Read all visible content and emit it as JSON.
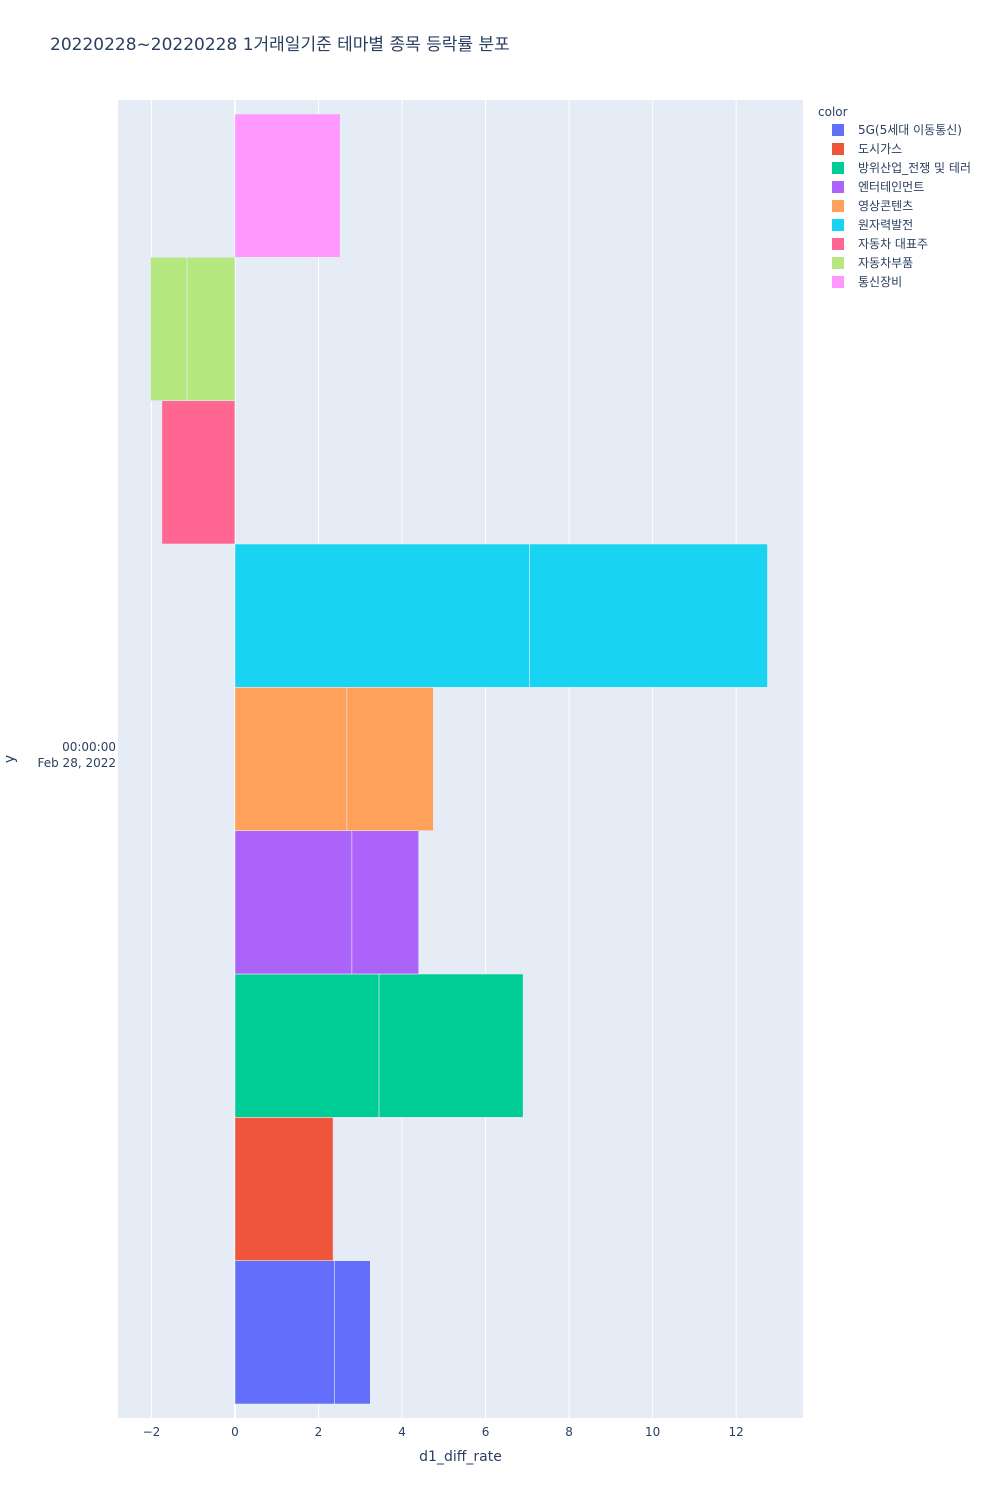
{
  "chart_data": {
    "type": "bar",
    "orientation": "horizontal",
    "barmode": "relative",
    "title": "20220228~20220228 1거래일기준 테마별 종목 등락률 분포",
    "xlabel": "d1_diff_rate",
    "ylabel": "y",
    "y_category_label": [
      "00:00:00",
      "Feb 28, 2022"
    ],
    "xlim": [
      -2.8,
      13.6
    ],
    "xticks": [
      -2,
      0,
      2,
      4,
      6,
      8,
      10,
      12
    ],
    "xtick_labels": [
      "−2",
      "0",
      "2",
      "4",
      "6",
      "8",
      "10",
      "12"
    ],
    "grid": true,
    "legend_title": "color",
    "legend_position": "right",
    "series": [
      {
        "name": "5G(5세대 이동통신)",
        "color": "#636efa",
        "segments": [
          2.38,
          0.86
        ]
      },
      {
        "name": "도시가스",
        "color": "#EF553B",
        "segments": [
          2.35
        ]
      },
      {
        "name": "방위산업_전쟁 및 테러",
        "color": "#00cc96",
        "segments": [
          3.45,
          3.45
        ]
      },
      {
        "name": "엔터테인먼트",
        "color": "#ab63fa",
        "segments": [
          2.8,
          1.6
        ]
      },
      {
        "name": "영상콘텐츠",
        "color": "#FFA15A",
        "segments": [
          2.68,
          2.07
        ]
      },
      {
        "name": "원자력발전",
        "color": "#19d3f3",
        "segments": [
          7.05,
          5.7
        ]
      },
      {
        "name": "자동차 대표주",
        "color": "#FF6692",
        "segments": [
          -1.75
        ]
      },
      {
        "name": "자동차부품",
        "color": "#B6E880",
        "segments": [
          -1.15,
          -0.87
        ]
      },
      {
        "name": "통신장비",
        "color": "#FF97FF",
        "segments": [
          2.52
        ]
      }
    ]
  }
}
